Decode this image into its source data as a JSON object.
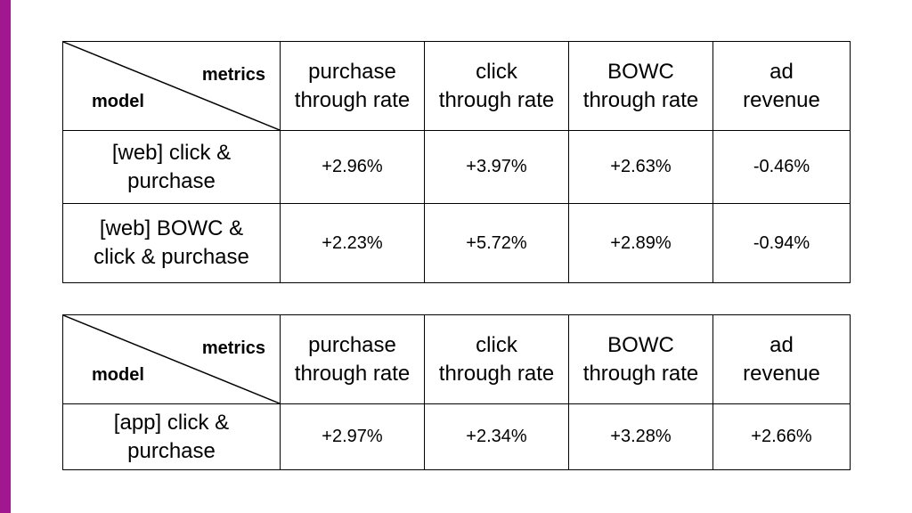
{
  "header": {
    "corner_metrics": "metrics",
    "corner_model": "model",
    "columns": [
      "purchase\nthrough rate",
      "click\nthrough rate",
      "BOWC\nthrough rate",
      "ad\nrevenue"
    ]
  },
  "tables": [
    {
      "rows": [
        {
          "model": "[web] click &\npurchase",
          "values": [
            "+2.96%",
            "+3.97%",
            "+2.63%",
            "-0.46%"
          ]
        },
        {
          "model": "[web] BOWC &\nclick & purchase",
          "values": [
            "+2.23%",
            "+5.72%",
            "+2.89%",
            "-0.94%"
          ]
        }
      ]
    },
    {
      "rows": [
        {
          "model": "[app] click &\npurchase",
          "values": [
            "+2.97%",
            "+2.34%",
            "+3.28%",
            "+2.66%"
          ]
        }
      ]
    }
  ],
  "colors": {
    "accent_bar": "#a0178f",
    "border": "#000000"
  }
}
